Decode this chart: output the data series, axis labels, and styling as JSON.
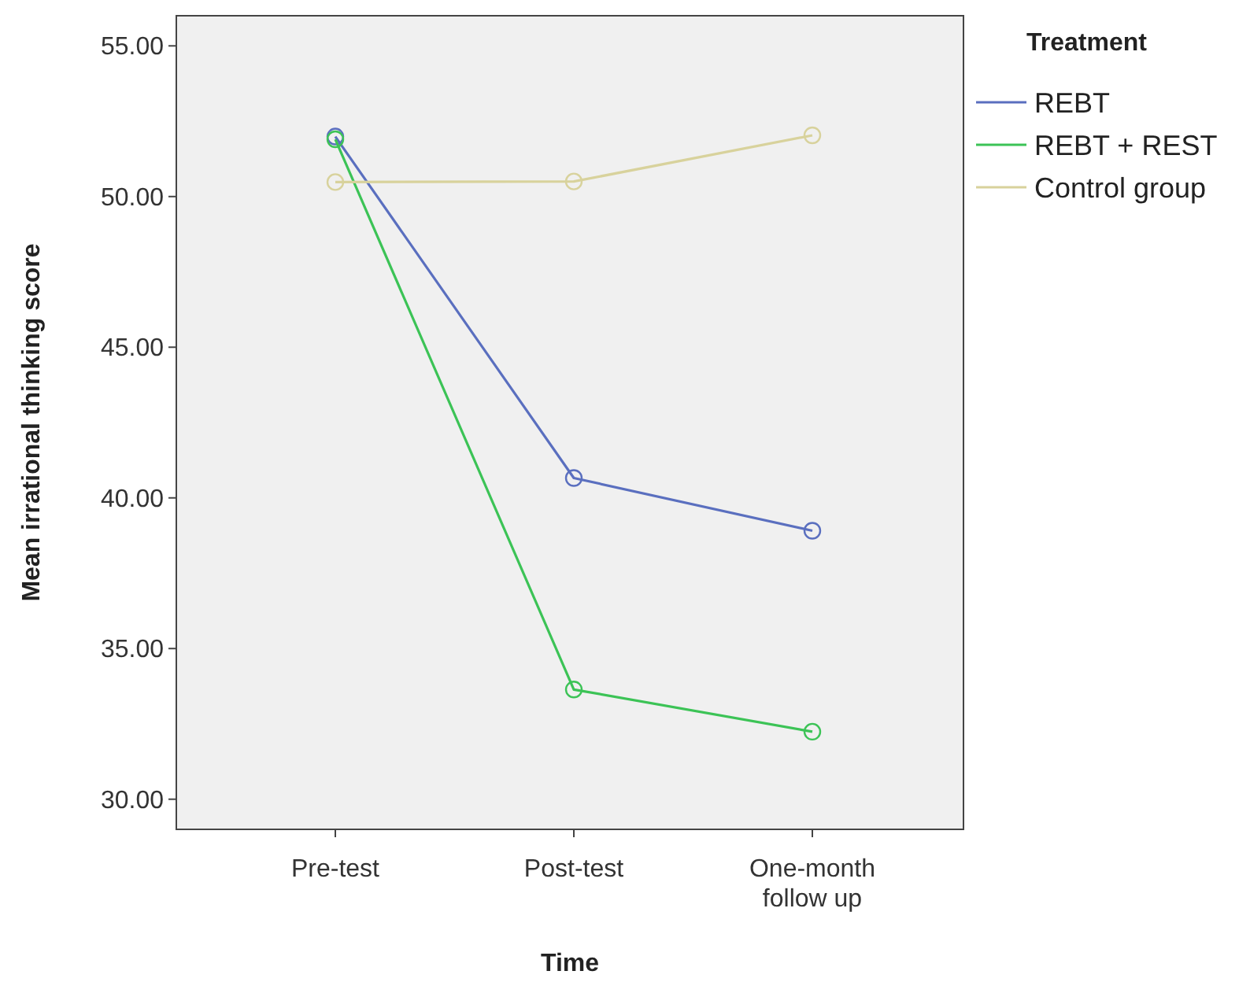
{
  "chart_data": {
    "type": "line",
    "xlabel": "Time",
    "ylabel": "Mean irrational thinking score",
    "legend_title": "Treatment",
    "categories": [
      "Pre-test",
      "Post-test",
      "One-month follow up"
    ],
    "series": [
      {
        "name": "REBT",
        "color": "#5a6fbf",
        "values": [
          51.99,
          40.66,
          38.91
        ]
      },
      {
        "name": "REBT + REST",
        "color": "#3cc356",
        "values": [
          51.9,
          33.64,
          32.24
        ]
      },
      {
        "name": "Control group",
        "color": "#d8d29c",
        "values": [
          50.48,
          50.5,
          52.03
        ]
      }
    ],
    "ylim": [
      29,
      56
    ],
    "yticks": [
      {
        "value": 30,
        "label": "30.00"
      },
      {
        "value": 35,
        "label": "35.00"
      },
      {
        "value": 40,
        "label": "40.00"
      },
      {
        "value": 45,
        "label": "45.00"
      },
      {
        "value": 50,
        "label": "50.00"
      },
      {
        "value": 55,
        "label": "55.00"
      }
    ],
    "grid": false,
    "legend": "right",
    "marker": "circle",
    "line_style": "solid"
  }
}
